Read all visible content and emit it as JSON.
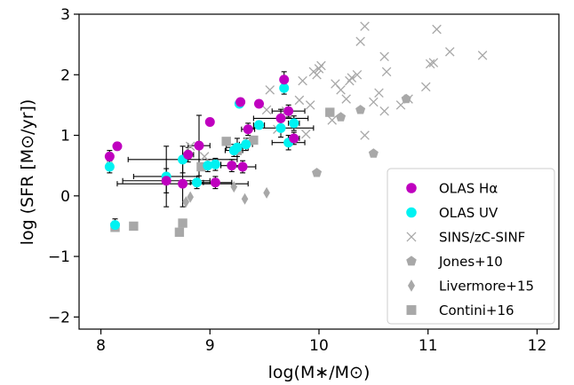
{
  "chart_data": {
    "type": "scatter",
    "xlabel": "log(M∗/M⊙)",
    "ylabel": "log (SFR [M⊙/yr])",
    "xlim": [
      7.8,
      12.2
    ],
    "ylim": [
      -2.2,
      3.0
    ],
    "xticks": [
      "8",
      "9",
      "10",
      "11",
      "12"
    ],
    "xtick_values": [
      8,
      9,
      10,
      11,
      12
    ],
    "yticks": [
      "−2",
      "−1",
      "0",
      "1",
      "2",
      "3"
    ],
    "ytick_values": [
      -2,
      -1,
      0,
      1,
      2,
      3
    ],
    "legend_position": "lower-right",
    "colors": {
      "olas_ha": "#bf00bf",
      "olas_uv": "#00f2f2",
      "sins": "#a8a8a8",
      "jones": "#a8a8a8",
      "livermore": "#a8a8a8",
      "contini": "#a8a8a8",
      "errorbar": "#000000"
    },
    "series": [
      {
        "name": "OLAS Hα",
        "marker": "circle",
        "points": [
          [
            8.08,
            0.65
          ],
          [
            8.15,
            0.82
          ],
          [
            8.6,
            0.25
          ],
          [
            8.75,
            0.2
          ],
          [
            8.8,
            0.68
          ],
          [
            8.9,
            0.83
          ],
          [
            9.0,
            1.22
          ],
          [
            9.05,
            0.22
          ],
          [
            9.2,
            0.5
          ],
          [
            9.28,
            1.55
          ],
          [
            9.3,
            0.48
          ],
          [
            9.35,
            1.1
          ],
          [
            9.45,
            1.52
          ],
          [
            9.65,
            1.28
          ],
          [
            9.68,
            1.92
          ],
          [
            9.72,
            1.4
          ],
          [
            9.77,
            0.95
          ]
        ]
      },
      {
        "name": "OLAS UV",
        "marker": "circle",
        "points": [
          [
            8.08,
            0.48
          ],
          [
            8.13,
            -0.48
          ],
          [
            8.6,
            0.32
          ],
          [
            8.75,
            0.6
          ],
          [
            8.88,
            0.22
          ],
          [
            8.98,
            0.5
          ],
          [
            9.05,
            0.52
          ],
          [
            9.22,
            0.75
          ],
          [
            9.25,
            0.8
          ],
          [
            9.27,
            1.52
          ],
          [
            9.33,
            0.85
          ],
          [
            9.45,
            1.17
          ],
          [
            9.65,
            1.12
          ],
          [
            9.68,
            1.78
          ],
          [
            9.72,
            0.88
          ],
          [
            9.77,
            1.2
          ]
        ]
      },
      {
        "name": "SINS/zC-SINF",
        "marker": "x",
        "points": [
          [
            8.82,
            0.82
          ],
          [
            8.95,
            0.65
          ],
          [
            9.35,
            0.9
          ],
          [
            9.52,
            1.42
          ],
          [
            9.55,
            1.75
          ],
          [
            9.62,
            1.1
          ],
          [
            9.7,
            1.4
          ],
          [
            9.82,
            1.58
          ],
          [
            9.88,
            1.02
          ],
          [
            9.92,
            1.5
          ],
          [
            9.85,
            1.9
          ],
          [
            9.95,
            2.05
          ],
          [
            9.98,
            2.0
          ],
          [
            10.0,
            2.1
          ],
          [
            10.02,
            2.15
          ],
          [
            10.12,
            1.25
          ],
          [
            10.15,
            1.85
          ],
          [
            10.2,
            1.75
          ],
          [
            10.25,
            1.6
          ],
          [
            10.28,
            1.9
          ],
          [
            10.3,
            1.95
          ],
          [
            10.35,
            2.0
          ],
          [
            10.38,
            2.55
          ],
          [
            10.42,
            2.8
          ],
          [
            10.42,
            1.0
          ],
          [
            10.5,
            1.55
          ],
          [
            10.55,
            1.7
          ],
          [
            10.6,
            2.3
          ],
          [
            10.6,
            1.4
          ],
          [
            10.62,
            2.05
          ],
          [
            10.75,
            1.5
          ],
          [
            10.82,
            1.6
          ],
          [
            10.98,
            1.8
          ],
          [
            11.02,
            2.18
          ],
          [
            11.05,
            2.2
          ],
          [
            11.08,
            2.75
          ],
          [
            11.2,
            2.38
          ],
          [
            11.5,
            2.32
          ]
        ]
      },
      {
        "name": "Jones+10",
        "marker": "pentagon",
        "points": [
          [
            9.98,
            0.38
          ],
          [
            10.2,
            1.3
          ],
          [
            10.38,
            1.42
          ],
          [
            10.5,
            0.7
          ],
          [
            10.8,
            1.6
          ]
        ]
      },
      {
        "name": "Livermore+15",
        "marker": "diamond",
        "points": [
          [
            8.78,
            -0.1
          ],
          [
            8.82,
            -0.02
          ],
          [
            9.22,
            0.15
          ],
          [
            9.32,
            -0.05
          ],
          [
            9.52,
            0.05
          ]
        ]
      },
      {
        "name": "Contini+16",
        "marker": "square",
        "points": [
          [
            8.13,
            -0.52
          ],
          [
            8.3,
            -0.5
          ],
          [
            8.72,
            -0.6
          ],
          [
            8.75,
            -0.45
          ],
          [
            8.92,
            0.48
          ],
          [
            9.15,
            0.9
          ],
          [
            9.25,
            0.75
          ],
          [
            9.4,
            0.92
          ],
          [
            10.1,
            1.38
          ]
        ]
      }
    ],
    "errorbars": [
      {
        "x": 8.08,
        "y": 0.65,
        "xerr": 0.02,
        "yerr": 0.1
      },
      {
        "x": 8.08,
        "y": 0.48,
        "xerr": 0.02,
        "yerr": 0.1
      },
      {
        "x": 8.15,
        "y": 0.82,
        "xerr": 0.02,
        "yerr": 0.06
      },
      {
        "x": 8.13,
        "y": -0.48,
        "xerr": 0.03,
        "yerr": 0.1
      },
      {
        "x": 8.6,
        "y": 0.25,
        "xerr": 0.4,
        "yerr": 0.2
      },
      {
        "x": 8.6,
        "y": 0.32,
        "xerr": 0.3,
        "yerr": 0.5
      },
      {
        "x": 8.75,
        "y": 0.2,
        "xerr": 0.6,
        "yerr": 0.38
      },
      {
        "x": 8.75,
        "y": 0.6,
        "xerr": 0.5,
        "yerr": 0.22
      },
      {
        "x": 8.8,
        "y": 0.68,
        "xerr": 0.05,
        "yerr": 0.12
      },
      {
        "x": 8.88,
        "y": 0.22,
        "xerr": 0.06,
        "yerr": 0.1
      },
      {
        "x": 8.9,
        "y": 0.83,
        "xerr": 0.1,
        "yerr": 0.5
      },
      {
        "x": 8.98,
        "y": 0.5,
        "xerr": 0.08,
        "yerr": 0.1
      },
      {
        "x": 9.0,
        "y": 1.22,
        "xerr": 0.03,
        "yerr": 0.05
      },
      {
        "x": 9.05,
        "y": 0.52,
        "xerr": 0.05,
        "yerr": 0.1
      },
      {
        "x": 9.05,
        "y": 0.22,
        "xerr": 0.15,
        "yerr": 0.1
      },
      {
        "x": 9.2,
        "y": 0.5,
        "xerr": 0.1,
        "yerr": 0.1
      },
      {
        "x": 9.22,
        "y": 0.75,
        "xerr": 0.08,
        "yerr": 0.1
      },
      {
        "x": 9.25,
        "y": 0.8,
        "xerr": 0.1,
        "yerr": 0.15
      },
      {
        "x": 9.3,
        "y": 0.48,
        "xerr": 0.12,
        "yerr": 0.1
      },
      {
        "x": 9.33,
        "y": 0.85,
        "xerr": 0.06,
        "yerr": 0.1
      },
      {
        "x": 9.35,
        "y": 1.1,
        "xerr": 0.06,
        "yerr": 0.1
      },
      {
        "x": 9.45,
        "y": 1.17,
        "xerr": 0.05,
        "yerr": 0.06
      },
      {
        "x": 9.45,
        "y": 1.52,
        "xerr": 0.03,
        "yerr": 0.05
      },
      {
        "x": 9.65,
        "y": 1.28,
        "xerr": 0.25,
        "yerr": 0.15
      },
      {
        "x": 9.65,
        "y": 1.12,
        "xerr": 0.3,
        "yerr": 0.15
      },
      {
        "x": 9.68,
        "y": 1.92,
        "xerr": 0.03,
        "yerr": 0.13
      },
      {
        "x": 9.68,
        "y": 1.78,
        "xerr": 0.03,
        "yerr": 0.1
      },
      {
        "x": 9.72,
        "y": 1.4,
        "xerr": 0.15,
        "yerr": 0.1
      },
      {
        "x": 9.72,
        "y": 0.88,
        "xerr": 0.15,
        "yerr": 0.12
      },
      {
        "x": 9.77,
        "y": 1.2,
        "xerr": 0.05,
        "yerr": 0.12
      },
      {
        "x": 9.77,
        "y": 0.95,
        "xerr": 0.05,
        "yerr": 0.1
      }
    ]
  }
}
